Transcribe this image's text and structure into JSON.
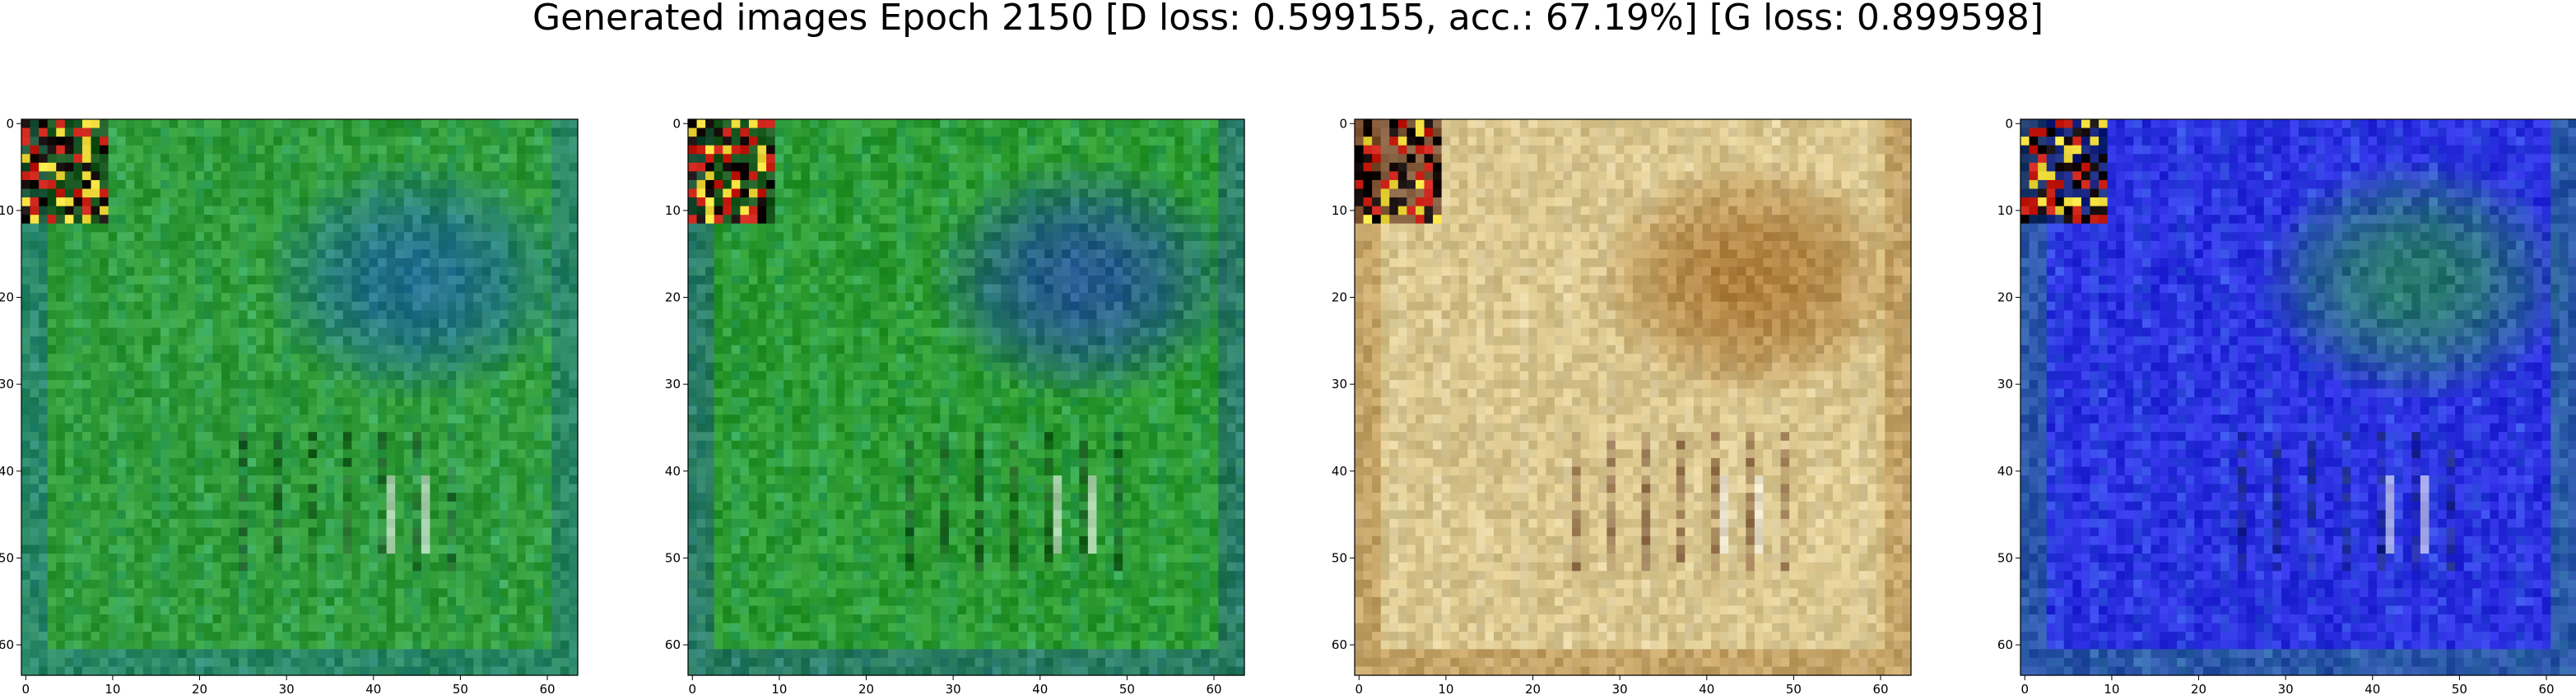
{
  "figure": {
    "title": "Generated images Epoch 2150 [D loss: 0.599155, acc.: 67.19%] [G loss: 0.899598]"
  },
  "axes": {
    "x_ticks": [
      "0",
      "10",
      "20",
      "30",
      "40",
      "50",
      "60"
    ],
    "y_ticks": [
      "0",
      "10",
      "20",
      "30",
      "40",
      "50",
      "60"
    ],
    "tick_values": [
      0,
      10,
      20,
      30,
      40,
      50,
      60
    ],
    "extent": [
      -0.5,
      63.5
    ]
  },
  "panels": [
    {
      "id": "sample-1",
      "palette": "green",
      "base": "#2f9a35",
      "accent": "#1e5fb0",
      "highlight": "#48c8d8",
      "dark": "#0a2a10"
    },
    {
      "id": "sample-2",
      "palette": "green",
      "base": "#2c9a2e",
      "accent": "#2340b4",
      "highlight": "#3dbccc",
      "dark": "#0b2a0c"
    },
    {
      "id": "sample-3",
      "palette": "beige",
      "base": "#d8c48a",
      "accent": "#a0641e",
      "highlight": "#f2f0e6",
      "dark": "#4a1808"
    },
    {
      "id": "sample-4",
      "palette": "blue",
      "base": "#2a2ce0",
      "accent": "#2a9a40",
      "highlight": "#46b8e0",
      "dark": "#081a3a"
    }
  ]
}
